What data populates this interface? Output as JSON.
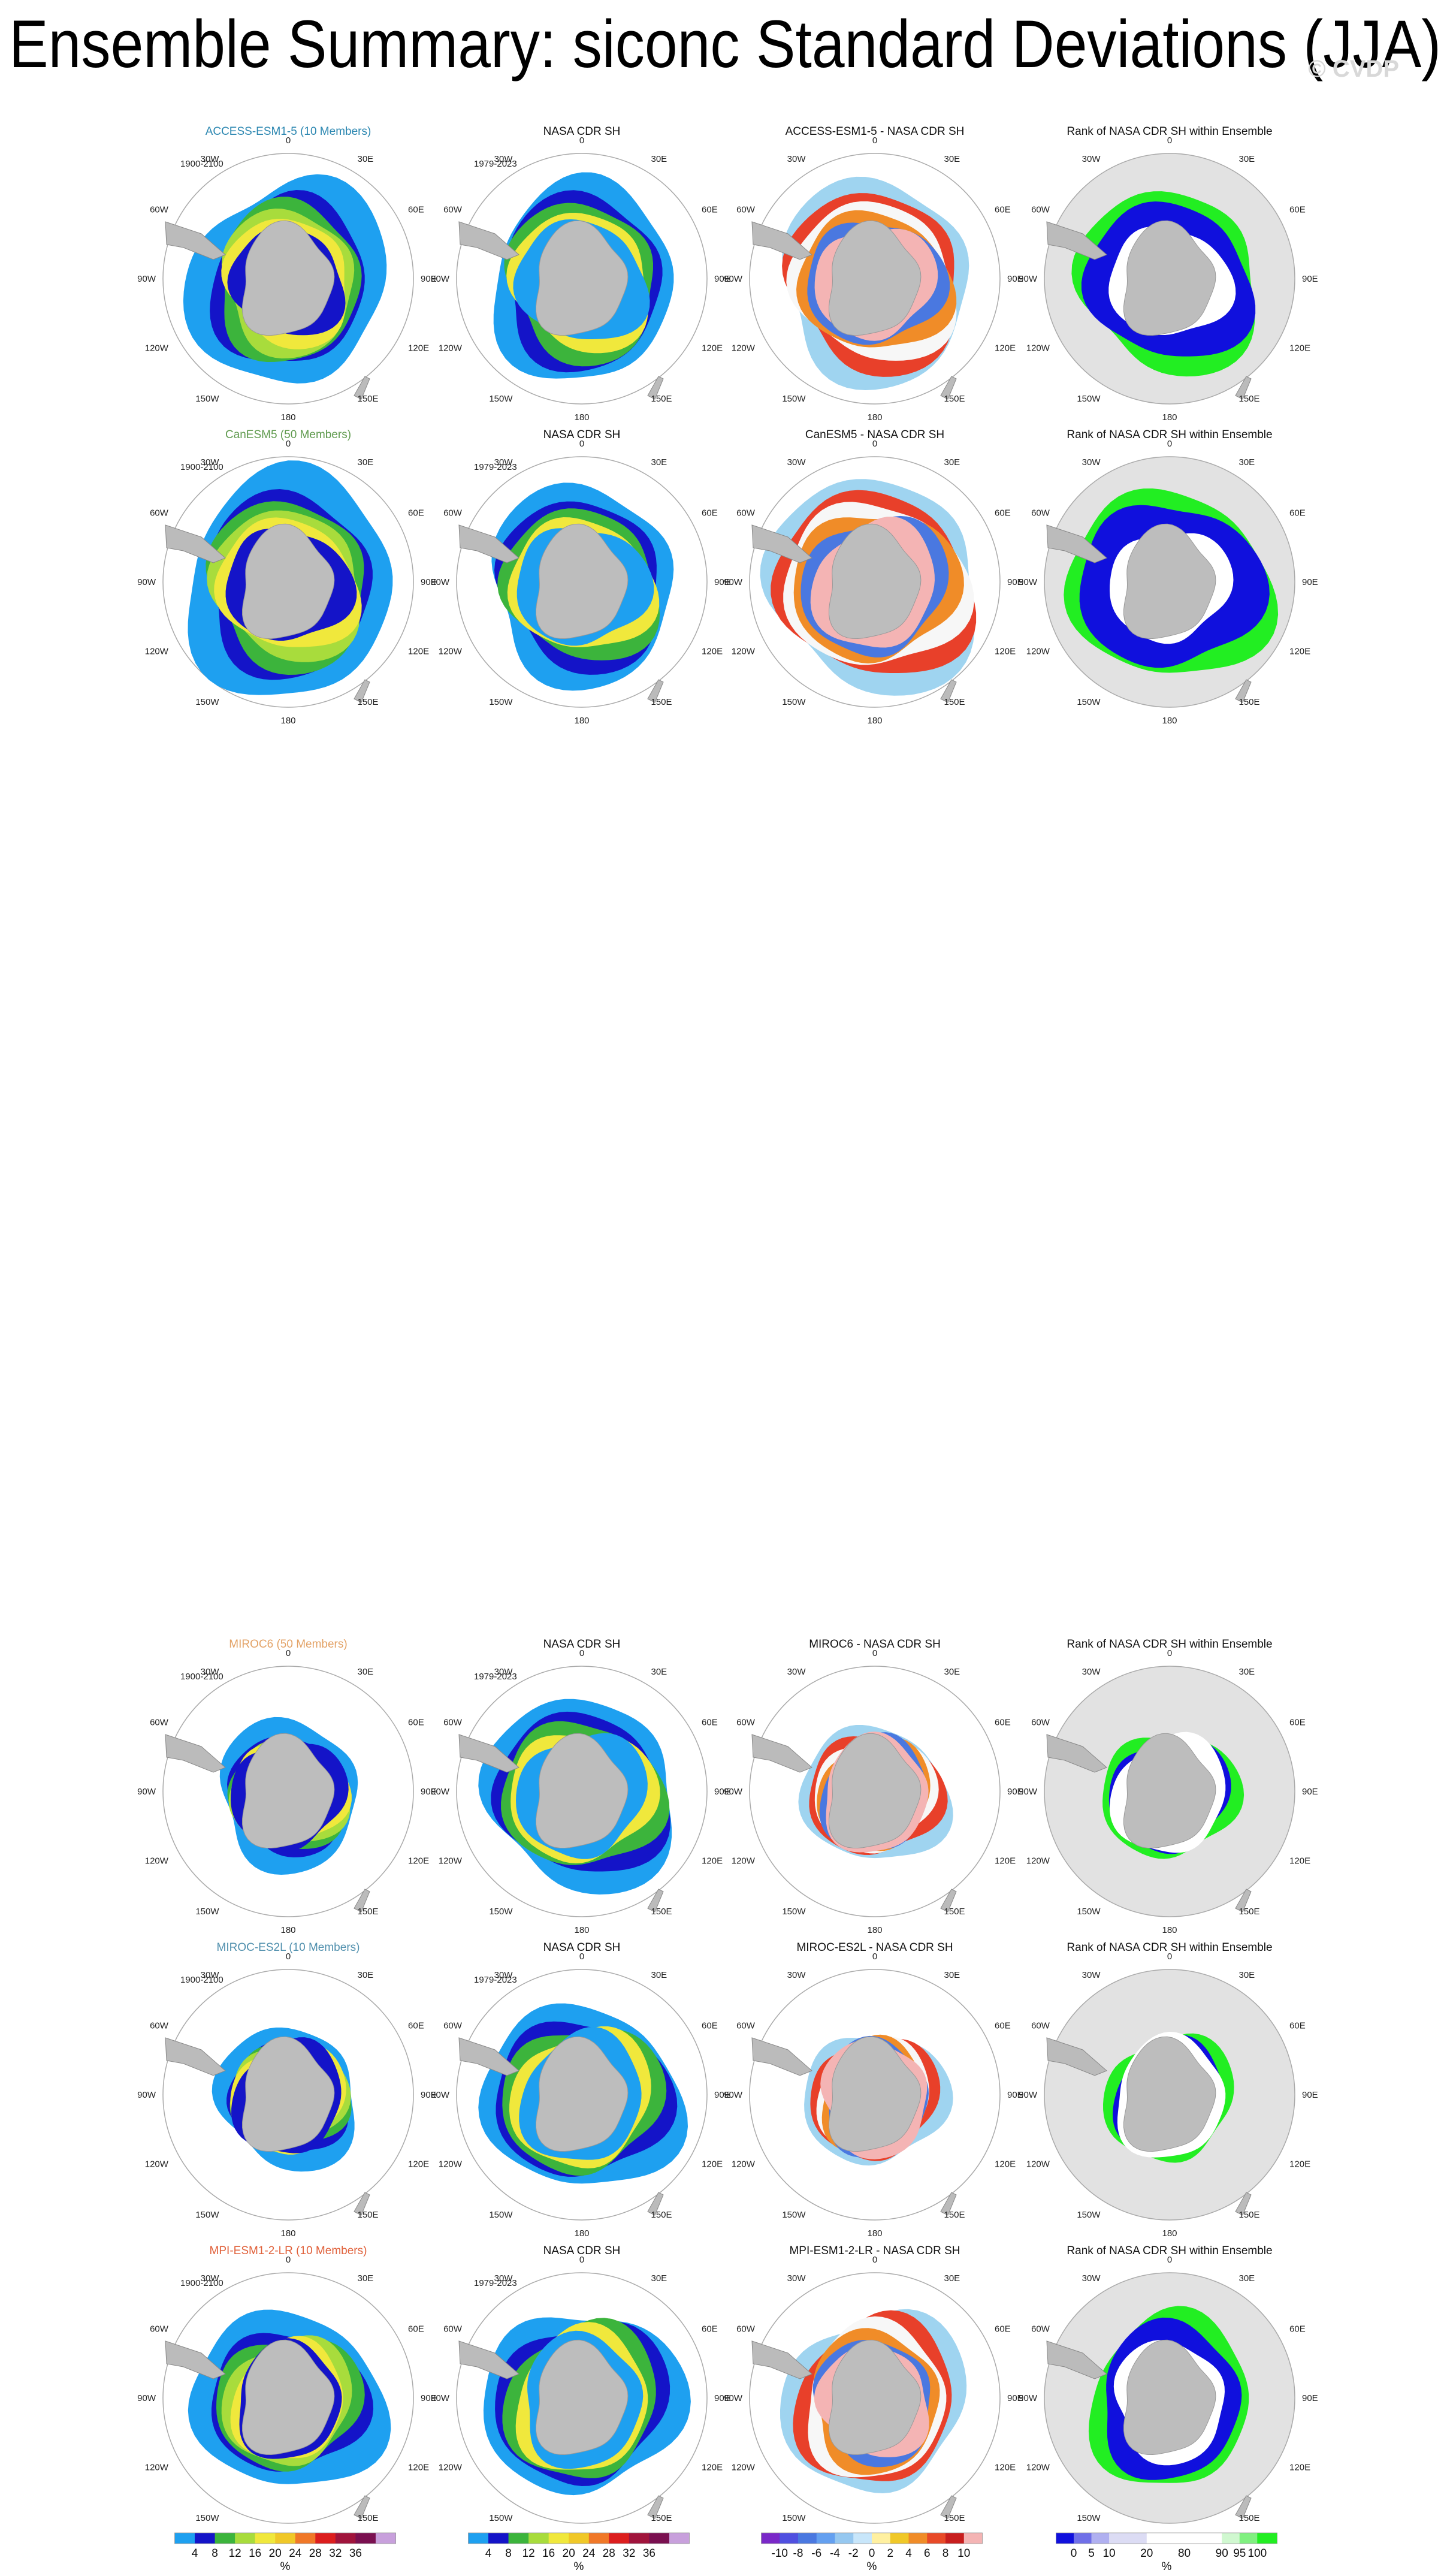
{
  "title": "Ensemble Summary: siconc Standard Deviations (JJA)",
  "watermark": "© CVDP",
  "longitude_labels": [
    "0",
    "30E",
    "60E",
    "90E",
    "120E",
    "150E",
    "180",
    "150W",
    "120W",
    "90W",
    "60W",
    "30W"
  ],
  "rows": [
    {
      "model_title": "ACCESS-ESM1-5 (10 Members)",
      "model_period": "1900-2100",
      "obs_title": "NASA CDR SH",
      "obs_period": "1979-2023",
      "diff_title": "ACCESS-ESM1-5 - NASA CDR SH",
      "rank_title": "Rank of NASA CDR SH within Ensemble"
    },
    {
      "model_title": "CanESM5 (50 Members)",
      "model_period": "1900-2100",
      "obs_title": "NASA CDR SH",
      "obs_period": "1979-2023",
      "diff_title": "CanESM5 - NASA CDR SH",
      "rank_title": "Rank of NASA CDR SH within Ensemble"
    },
    {
      "model_title": "MIROC6 (50 Members)",
      "model_period": "1900-2100",
      "obs_title": "NASA CDR SH",
      "obs_period": "1979-2023",
      "diff_title": "MIROC6 - NASA CDR SH",
      "rank_title": "Rank of NASA CDR SH within Ensemble"
    },
    {
      "model_title": "MIROC-ES2L (10 Members)",
      "model_period": "1900-2100",
      "obs_title": "NASA CDR SH",
      "obs_period": "1979-2023",
      "diff_title": "MIROC-ES2L - NASA CDR SH",
      "rank_title": "Rank of NASA CDR SH within Ensemble"
    },
    {
      "model_title": "MPI-ESM1-2-LR (10 Members)",
      "model_period": "1900-2100",
      "obs_title": "NASA CDR SH",
      "obs_period": "1979-2023",
      "diff_title": "MPI-ESM1-2-LR - NASA CDR SH",
      "rank_title": "Rank of NASA CDR SH within Ensemble"
    }
  ],
  "colorbars": [
    {
      "labels": [
        "4",
        "8",
        "12",
        "16",
        "20",
        "24",
        "28",
        "32",
        "36"
      ],
      "unit": "%"
    },
    {
      "labels": [
        "4",
        "8",
        "12",
        "16",
        "20",
        "24",
        "28",
        "32",
        "36"
      ],
      "unit": "%"
    },
    {
      "labels": [
        "-10",
        "-8",
        "-6",
        "-4",
        "-2",
        "0",
        "2",
        "4",
        "6",
        "8",
        "10"
      ],
      "unit": "%"
    },
    {
      "labels": [
        "0",
        "5",
        "10",
        "20",
        "80",
        "90",
        "95",
        "100"
      ],
      "unit": "%"
    }
  ]
}
